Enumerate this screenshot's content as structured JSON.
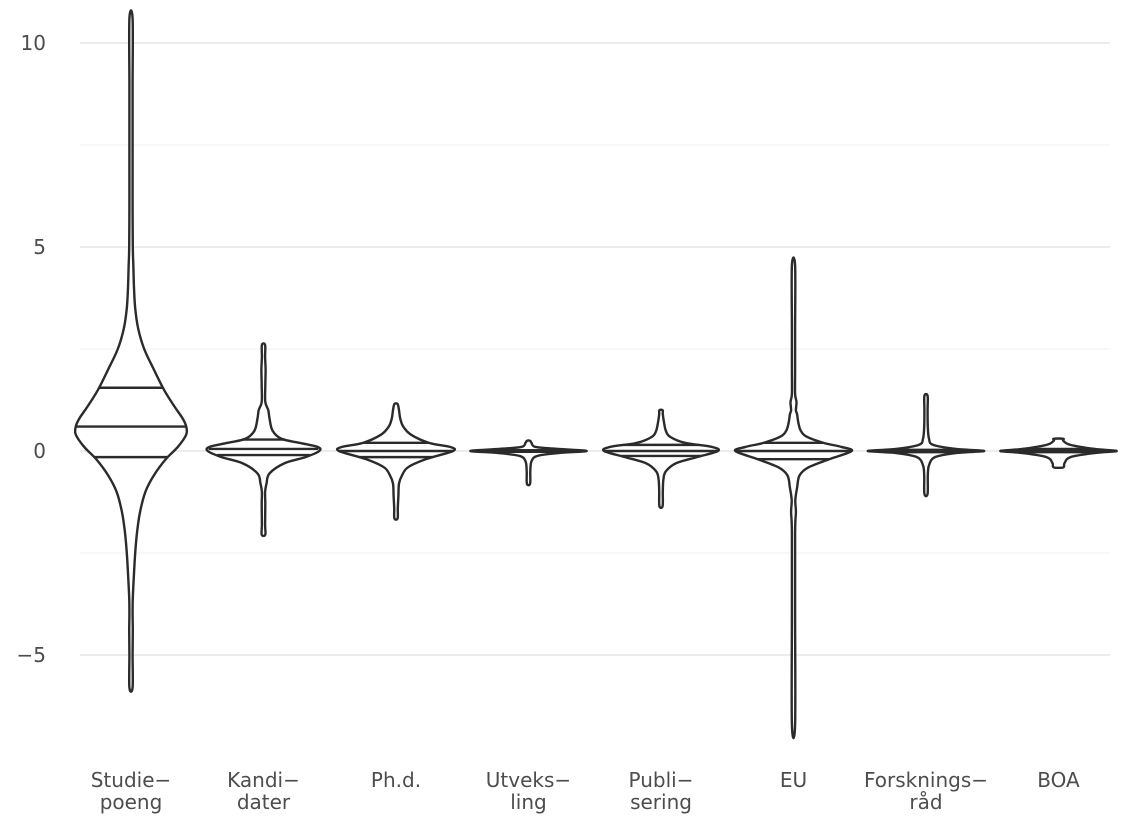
{
  "chart_data": {
    "type": "violin",
    "title": "",
    "xlabel": "",
    "ylabel": "",
    "ylim": [
      -7.4,
      10.8
    ],
    "yticks": [
      -5,
      0,
      5,
      10
    ],
    "ytick_labels": [
      "−5",
      "0",
      "5",
      "10"
    ],
    "y_minor_ticks": [
      -2.5,
      2.5,
      7.5
    ],
    "grid": true,
    "legend": "none",
    "categories": [
      {
        "label_lines": [
          "Studie−",
          "poeng"
        ],
        "min": -5.8,
        "max": 10.6,
        "quantiles": [
          -0.15,
          0.6,
          1.55
        ],
        "max_half_width": 0.92,
        "profile": [
          [
            -5.8,
            0.01
          ],
          [
            -5.0,
            0.02
          ],
          [
            -4.4,
            0.03
          ],
          [
            -4.0,
            0.015
          ],
          [
            -3.6,
            0.03
          ],
          [
            -3.0,
            0.05
          ],
          [
            -2.5,
            0.07
          ],
          [
            -2.0,
            0.1
          ],
          [
            -1.5,
            0.15
          ],
          [
            -1.0,
            0.24
          ],
          [
            -0.6,
            0.38
          ],
          [
            -0.2,
            0.58
          ],
          [
            0.1,
            0.78
          ],
          [
            0.4,
            0.92
          ],
          [
            0.6,
            0.92
          ],
          [
            0.8,
            0.86
          ],
          [
            1.1,
            0.72
          ],
          [
            1.5,
            0.55
          ],
          [
            2.0,
            0.38
          ],
          [
            2.5,
            0.22
          ],
          [
            3.0,
            0.12
          ],
          [
            3.5,
            0.07
          ],
          [
            4.0,
            0.05
          ],
          [
            4.5,
            0.04
          ],
          [
            5.0,
            0.03
          ],
          [
            6.0,
            0.02
          ],
          [
            7.0,
            0.015
          ],
          [
            8.0,
            0.01
          ],
          [
            9.0,
            0.008
          ],
          [
            10.6,
            0.005
          ]
        ]
      },
      {
        "label_lines": [
          "Kandi−",
          "dater"
        ],
        "min": -2.05,
        "max": 2.6,
        "quantiles": [
          -0.1,
          0.05,
          0.28
        ],
        "max_half_width": 0.93,
        "profile": [
          [
            -2.05,
            0.03
          ],
          [
            -1.8,
            0.02
          ],
          [
            -1.3,
            0.03
          ],
          [
            -1.0,
            0.02
          ],
          [
            -0.8,
            0.05
          ],
          [
            -0.55,
            0.1
          ],
          [
            -0.3,
            0.35
          ],
          [
            -0.15,
            0.7
          ],
          [
            0.0,
            0.93
          ],
          [
            0.1,
            0.9
          ],
          [
            0.2,
            0.6
          ],
          [
            0.3,
            0.3
          ],
          [
            0.5,
            0.15
          ],
          [
            0.8,
            0.1
          ],
          [
            1.0,
            0.08
          ],
          [
            1.2,
            0.03
          ],
          [
            1.6,
            0.03
          ],
          [
            2.0,
            0.035
          ],
          [
            2.3,
            0.02
          ],
          [
            2.6,
            0.015
          ]
        ]
      },
      {
        "label_lines": [
          "Ph.d."
        ],
        "min": -1.65,
        "max": 1.15,
        "quantiles": [
          -0.15,
          0.0,
          0.2
        ],
        "max_half_width": 0.95,
        "profile": [
          [
            -1.65,
            0.02
          ],
          [
            -1.4,
            0.03
          ],
          [
            -1.1,
            0.04
          ],
          [
            -0.8,
            0.05
          ],
          [
            -0.6,
            0.1
          ],
          [
            -0.4,
            0.2
          ],
          [
            -0.2,
            0.5
          ],
          [
            0.0,
            0.95
          ],
          [
            0.1,
            0.9
          ],
          [
            0.2,
            0.55
          ],
          [
            0.4,
            0.25
          ],
          [
            0.6,
            0.12
          ],
          [
            0.8,
            0.07
          ],
          [
            1.0,
            0.05
          ],
          [
            1.15,
            0.02
          ]
        ]
      },
      {
        "label_lines": [
          "Utveks−",
          "ling"
        ],
        "min": -0.8,
        "max": 0.25,
        "quantiles": [
          -0.02,
          0.0,
          0.02
        ],
        "max_half_width": 0.97,
        "profile": [
          [
            -0.8,
            0.02
          ],
          [
            -0.5,
            0.03
          ],
          [
            -0.25,
            0.05
          ],
          [
            -0.12,
            0.15
          ],
          [
            -0.05,
            0.5
          ],
          [
            0.0,
            0.97
          ],
          [
            0.05,
            0.5
          ],
          [
            0.1,
            0.12
          ],
          [
            0.2,
            0.05
          ],
          [
            0.25,
            0.02
          ]
        ]
      },
      {
        "label_lines": [
          "Publi−",
          "sering"
        ],
        "min": -1.35,
        "max": 1.0,
        "quantiles": [
          -0.12,
          0.0,
          0.15
        ],
        "max_half_width": 0.95,
        "profile": [
          [
            -1.35,
            0.02
          ],
          [
            -1.0,
            0.03
          ],
          [
            -0.7,
            0.04
          ],
          [
            -0.5,
            0.08
          ],
          [
            -0.3,
            0.25
          ],
          [
            -0.15,
            0.6
          ],
          [
            0.0,
            0.95
          ],
          [
            0.1,
            0.85
          ],
          [
            0.2,
            0.4
          ],
          [
            0.35,
            0.15
          ],
          [
            0.5,
            0.08
          ],
          [
            0.7,
            0.05
          ],
          [
            0.9,
            0.03
          ],
          [
            1.0,
            0.02
          ]
        ]
      },
      {
        "label_lines": [
          "EU"
        ],
        "min": -6.7,
        "max": 4.55,
        "quantiles": [
          -0.2,
          0.0,
          0.2
        ],
        "max_half_width": 0.97,
        "profile": [
          [
            -6.7,
            0.01
          ],
          [
            -4.0,
            0.01
          ],
          [
            -2.0,
            0.015
          ],
          [
            -1.5,
            0.04
          ],
          [
            -1.2,
            0.03
          ],
          [
            -0.9,
            0.06
          ],
          [
            -0.6,
            0.1
          ],
          [
            -0.4,
            0.25
          ],
          [
            -0.2,
            0.6
          ],
          [
            0.0,
            0.97
          ],
          [
            0.1,
            0.8
          ],
          [
            0.2,
            0.5
          ],
          [
            0.35,
            0.22
          ],
          [
            0.5,
            0.12
          ],
          [
            0.7,
            0.08
          ],
          [
            0.9,
            0.06
          ],
          [
            1.0,
            0.04
          ],
          [
            1.2,
            0.05
          ],
          [
            1.4,
            0.02
          ],
          [
            2.0,
            0.02
          ],
          [
            3.0,
            0.012
          ],
          [
            4.55,
            0.008
          ]
        ]
      },
      {
        "label_lines": [
          "Forsknings−",
          "råd"
        ],
        "min": -1.05,
        "max": 1.35,
        "quantiles": [
          -0.03,
          0.0,
          0.03
        ],
        "max_half_width": 0.97,
        "profile": [
          [
            -1.05,
            0.02
          ],
          [
            -0.6,
            0.03
          ],
          [
            -0.35,
            0.05
          ],
          [
            -0.15,
            0.15
          ],
          [
            -0.05,
            0.5
          ],
          [
            0.0,
            0.97
          ],
          [
            0.05,
            0.5
          ],
          [
            0.15,
            0.12
          ],
          [
            0.3,
            0.05
          ],
          [
            0.6,
            0.03
          ],
          [
            1.0,
            0.02
          ],
          [
            1.35,
            0.015
          ]
        ]
      },
      {
        "label_lines": [
          "BOA"
        ],
        "min": -0.4,
        "max": 0.3,
        "quantiles": [
          -0.03,
          0.0,
          0.05
        ],
        "max_half_width": 0.97,
        "profile": [
          [
            -0.4,
            0.08
          ],
          [
            -0.3,
            0.1
          ],
          [
            -0.15,
            0.2
          ],
          [
            -0.05,
            0.6
          ],
          [
            0.0,
            0.97
          ],
          [
            0.05,
            0.6
          ],
          [
            0.15,
            0.2
          ],
          [
            0.25,
            0.08
          ],
          [
            0.3,
            0.08
          ]
        ]
      }
    ]
  }
}
